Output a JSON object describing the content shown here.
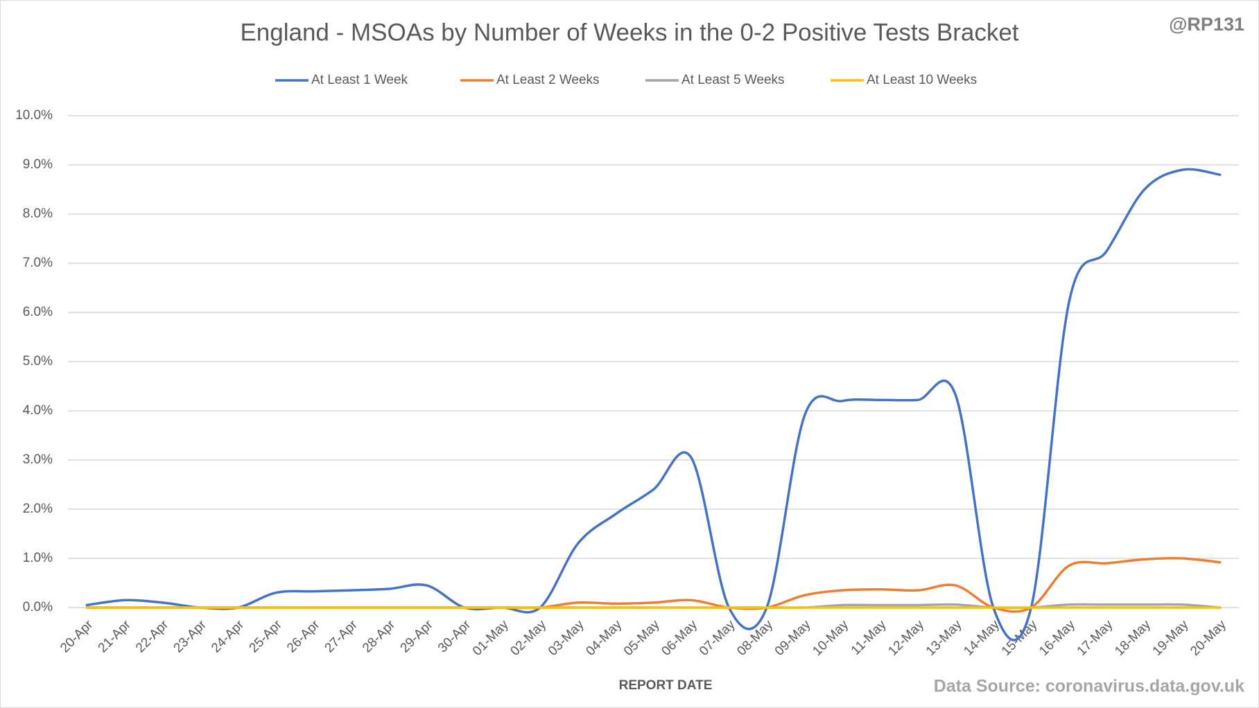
{
  "chart_data": {
    "type": "line",
    "title": "England - MSOAs by Number of Weeks in the 0-2 Positive Tests Bracket",
    "credit": "@RP131",
    "source": "Data Source: coronavirus.data.gov.uk",
    "x_label": "REPORT DATE",
    "categories": [
      "20-Apr",
      "21-Apr",
      "22-Apr",
      "23-Apr",
      "24-Apr",
      "25-Apr",
      "26-Apr",
      "27-Apr",
      "28-Apr",
      "29-Apr",
      "30-Apr",
      "01-May",
      "02-May",
      "03-May",
      "04-May",
      "05-May",
      "06-May",
      "07-May",
      "08-May",
      "09-May",
      "10-May",
      "11-May",
      "12-May",
      "13-May",
      "14-May",
      "15-May",
      "16-May",
      "17-May",
      "18-May",
      "19-May",
      "20-May"
    ],
    "series": [
      {
        "name": "At Least 1 Week",
        "color": "#4472c4",
        "values": [
          0.05,
          0.15,
          0.1,
          0,
          0,
          0.3,
          0.33,
          0.35,
          0.38,
          0.45,
          0,
          0,
          0,
          1.3,
          1.9,
          2.4,
          3.05,
          0,
          0,
          3.9,
          4.2,
          4.22,
          4.22,
          4.32,
          0,
          0,
          6.2,
          7.25,
          8.5,
          8.9,
          8.8
        ]
      },
      {
        "name": "At Least 2 Weeks",
        "color": "#ed7d31",
        "values": [
          0,
          0,
          0,
          0,
          0,
          0,
          0,
          0,
          0,
          0,
          0,
          0,
          0,
          0.1,
          0.08,
          0.1,
          0.15,
          0,
          0,
          0.25,
          0.35,
          0.37,
          0.35,
          0.45,
          0,
          0,
          0.85,
          0.9,
          0.98,
          1.0,
          0.92
        ]
      },
      {
        "name": "At Least 5 Weeks",
        "color": "#a5a5a5",
        "values": [
          0,
          0,
          0,
          0,
          0,
          0,
          0,
          0,
          0,
          0,
          0,
          0,
          0,
          0,
          0,
          0,
          0,
          0,
          0,
          0,
          0.05,
          0.05,
          0.05,
          0.06,
          0,
          0,
          0.06,
          0.06,
          0.06,
          0.06,
          0
        ]
      },
      {
        "name": "At Least 10 Weeks",
        "color": "#ffc000",
        "values": [
          0,
          0,
          0,
          0,
          0,
          0,
          0,
          0,
          0,
          0,
          0,
          0,
          0,
          0,
          0,
          0,
          0,
          0,
          0,
          0,
          0,
          0,
          0,
          0,
          0,
          0,
          0,
          0,
          0,
          0,
          0
        ]
      }
    ],
    "ylim": [
      0,
      10
    ],
    "yticks": [
      {
        "value": 0,
        "label": "0.0%"
      },
      {
        "value": 1,
        "label": "1.0%"
      },
      {
        "value": 2,
        "label": "2.0%"
      },
      {
        "value": 3,
        "label": "3.0%"
      },
      {
        "value": 4,
        "label": "4.0%"
      },
      {
        "value": 5,
        "label": "5.0%"
      },
      {
        "value": 6,
        "label": "6.0%"
      },
      {
        "value": 7,
        "label": "7.0%"
      },
      {
        "value": 8,
        "label": "8.0%"
      },
      {
        "value": 9,
        "label": "9.0%"
      },
      {
        "value": 10,
        "label": "10.0%"
      }
    ],
    "grid": true,
    "legend": "top"
  }
}
